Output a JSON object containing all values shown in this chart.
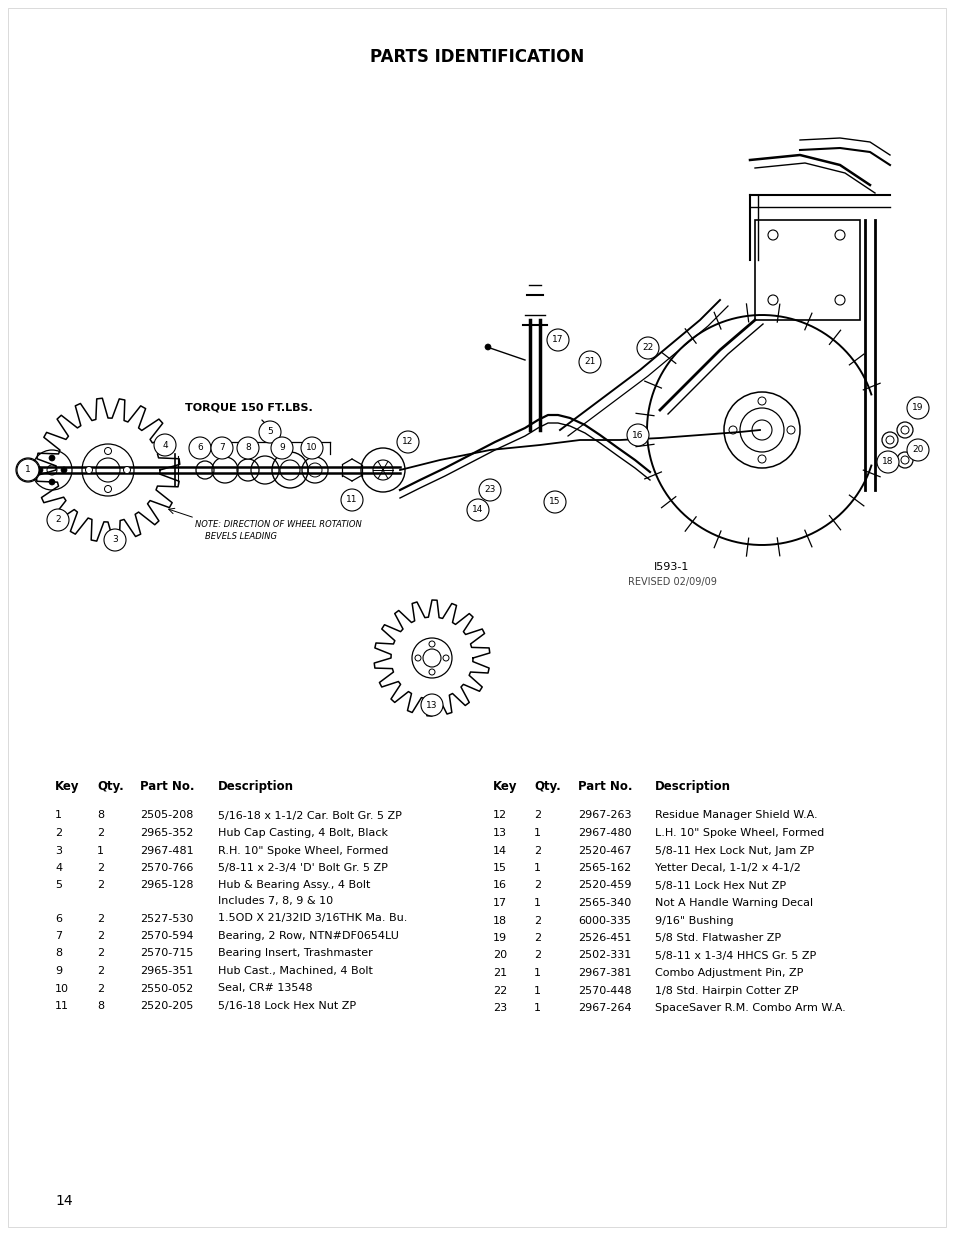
{
  "title": "PARTS IDENTIFICATION",
  "title_fontsize": 12,
  "background_color": "#ffffff",
  "page_number": "14",
  "diagram_note_1": "TORQUE 150 FT.LBS.",
  "diagram_note_2": "NOTE: DIRECTION OF WHEEL ROTATION\nBEVELS LEADING",
  "diagram_ref": "I593-1",
  "diagram_revised": "REVISED 02/09/09",
  "table_header": [
    "Key",
    "Qty.",
    "Part No.",
    "Description"
  ],
  "parts_left": [
    [
      "1",
      "8",
      "2505-208",
      "5/16-18 x 1-1/2 Car. Bolt Gr. 5 ZP"
    ],
    [
      "2",
      "2",
      "2965-352",
      "Hub Cap Casting, 4 Bolt, Black"
    ],
    [
      "3",
      "1",
      "2967-481",
      "R.H. 10\" Spoke Wheel, Formed"
    ],
    [
      "4",
      "2",
      "2570-766",
      "5/8-11 x 2-3/4 'D' Bolt Gr. 5 ZP"
    ],
    [
      "5",
      "2",
      "2965-128",
      "Hub & Bearing Assy., 4 Bolt\nIncludes 7, 8, 9 & 10"
    ],
    [
      "6",
      "2",
      "2527-530",
      "1.5OD X 21/32ID 3/16THK Ma. Bu."
    ],
    [
      "7",
      "2",
      "2570-594",
      "Bearing, 2 Row, NTN#DF0654LU"
    ],
    [
      "8",
      "2",
      "2570-715",
      "Bearing Insert, Trashmaster"
    ],
    [
      "9",
      "2",
      "2965-351",
      "Hub Cast., Machined, 4 Bolt"
    ],
    [
      "10",
      "2",
      "2550-052",
      "Seal, CR# 13548"
    ],
    [
      "11",
      "8",
      "2520-205",
      "5/16-18 Lock Hex Nut ZP"
    ]
  ],
  "parts_right": [
    [
      "12",
      "2",
      "2967-263",
      "Residue Manager Shield W.A."
    ],
    [
      "13",
      "1",
      "2967-480",
      "L.H. 10\" Spoke Wheel, Formed"
    ],
    [
      "14",
      "2",
      "2520-467",
      "5/8-11 Hex Lock Nut, Jam ZP"
    ],
    [
      "15",
      "1",
      "2565-162",
      "Yetter Decal, 1-1/2 x 4-1/2"
    ],
    [
      "16",
      "2",
      "2520-459",
      "5/8-11 Lock Hex Nut ZP"
    ],
    [
      "17",
      "1",
      "2565-340",
      "Not A Handle Warning Decal"
    ],
    [
      "18",
      "2",
      "6000-335",
      "9/16\" Bushing"
    ],
    [
      "19",
      "2",
      "2526-451",
      "5/8 Std. Flatwasher ZP"
    ],
    [
      "20",
      "2",
      "2502-331",
      "5/8-11 x 1-3/4 HHCS Gr. 5 ZP"
    ],
    [
      "21",
      "1",
      "2967-381",
      "Combo Adjustment Pin, ZP"
    ],
    [
      "22",
      "1",
      "2570-448",
      "1/8 Std. Hairpin Cotter ZP"
    ],
    [
      "23",
      "1",
      "2967-264",
      "SpaceSaver R.M. Combo Arm W.A."
    ]
  ]
}
